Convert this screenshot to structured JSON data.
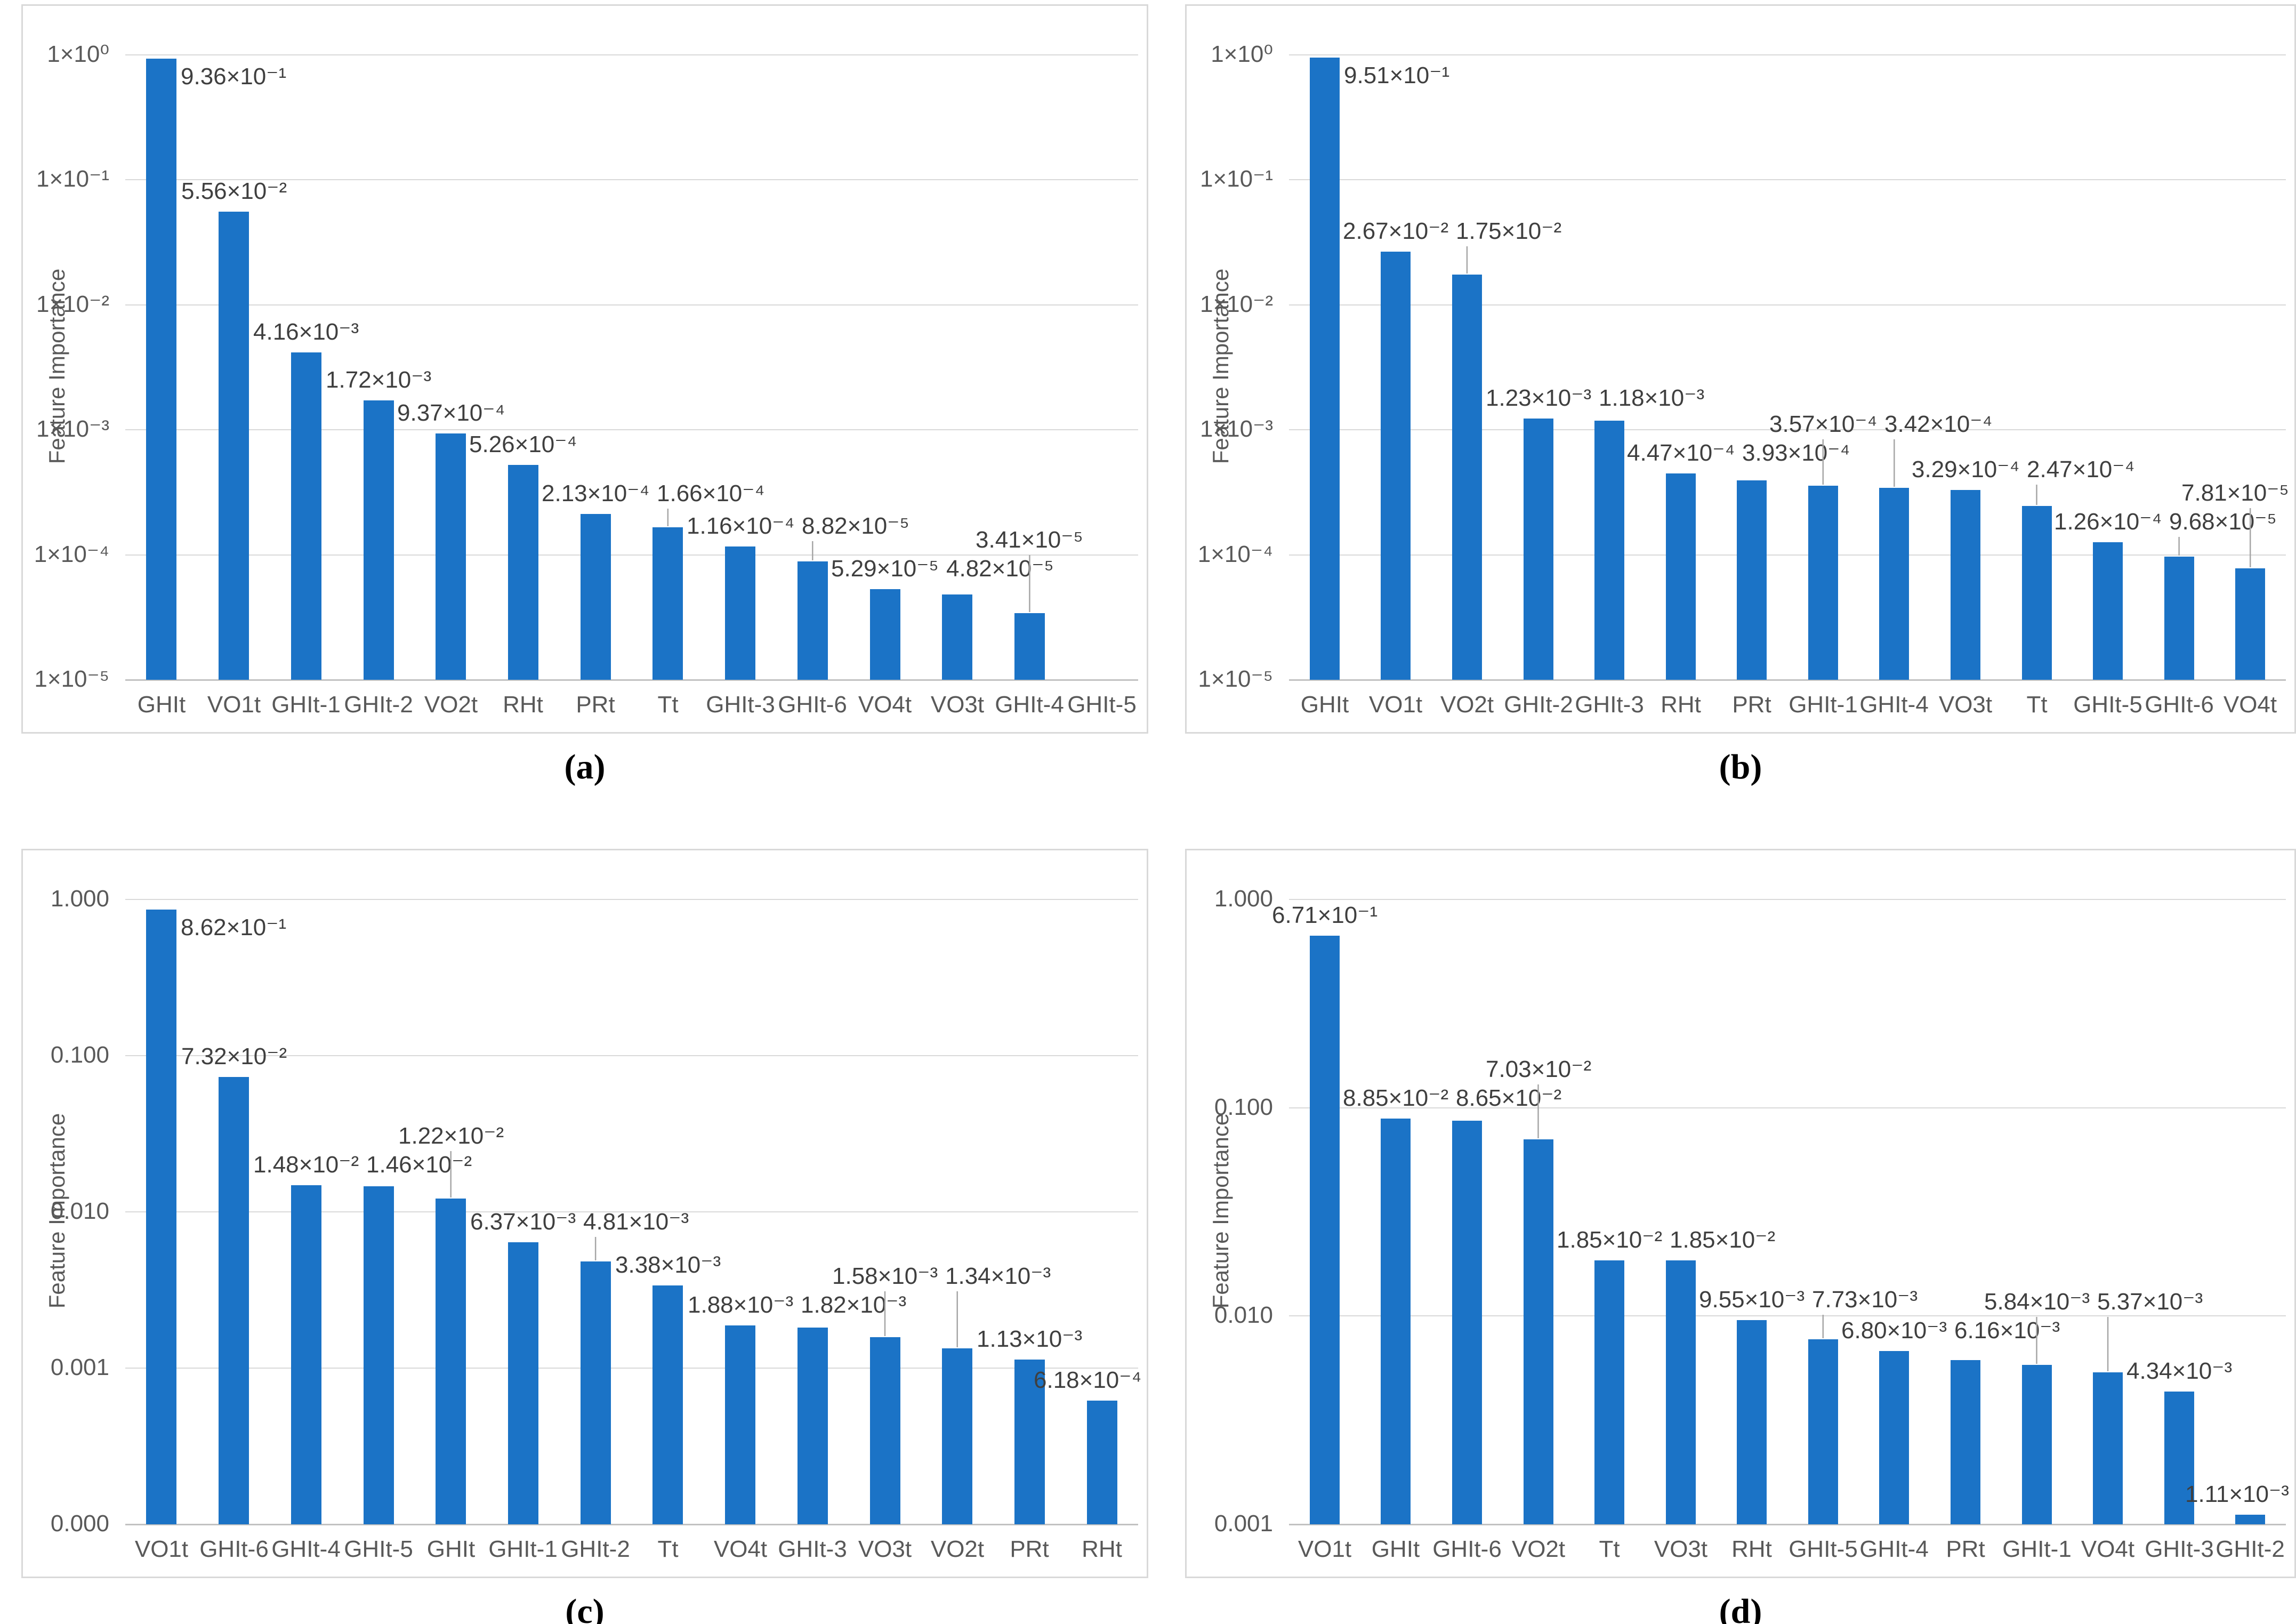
{
  "figure": {
    "bar_color": "#1b73c6",
    "grid_color": "#d9d9d9",
    "axis_line_color": "#c2c2c2",
    "border_color": "#d9d9d9",
    "tick_color": "#595959",
    "value_label_color": "#3f3f3f",
    "leader_color": "#a6a6a6",
    "caption_color": "#000000"
  },
  "chart_data": [
    {
      "id": "a",
      "caption": "(a)",
      "type": "bar",
      "ylabel": "Feature Importance",
      "xlabel": "",
      "yscale": "log",
      "ylim": [
        1e-05,
        1
      ],
      "grid": true,
      "legend": "none",
      "ytick_labels": [
        "1×10⁰",
        "1×10⁻¹",
        "1×10⁻²",
        "1×10⁻³",
        "1×10⁻⁴",
        "1×10⁻⁵"
      ],
      "categories": [
        "GHIt",
        "VO1t",
        "GHIt-1",
        "GHIt-2",
        "VO2t",
        "RHt",
        "PRt",
        "Tt",
        "GHIt-3",
        "GHIt-6",
        "VO4t",
        "VO3t",
        "GHIt-4",
        "GHIt-5"
      ],
      "values": [
        0.936,
        0.0556,
        0.00416,
        0.00172,
        0.000937,
        0.000526,
        0.000213,
        0.000166,
        0.000116,
        8.82e-05,
        5.29e-05,
        4.82e-05,
        3.41e-05,
        null
      ],
      "value_labels": [
        "9.36×10⁻¹",
        "5.56×10⁻²",
        "4.16×10⁻³",
        "1.72×10⁻³",
        "9.37×10⁻⁴",
        "5.26×10⁻⁴",
        "2.13×10⁻⁴",
        "1.66×10⁻⁴",
        "1.16×10⁻⁴",
        "8.82×10⁻⁵",
        "5.29×10⁻⁵",
        "4.82×10⁻⁵",
        "3.41×10⁻⁵",
        null
      ]
    },
    {
      "id": "b",
      "caption": "(b)",
      "type": "bar",
      "ylabel": "Feature Importance",
      "xlabel": "",
      "yscale": "log",
      "ylim": [
        1e-05,
        1
      ],
      "grid": true,
      "legend": "none",
      "ytick_labels": [
        "1×10⁰",
        "1×10⁻¹",
        "1×10⁻²",
        "1×10⁻³",
        "1×10⁻⁴",
        "1×10⁻⁵"
      ],
      "categories": [
        "GHIt",
        "VO1t",
        "VO2t",
        "GHIt-2",
        "GHIt-3",
        "RHt",
        "PRt",
        "GHIt-1",
        "GHIt-4",
        "VO3t",
        "Tt",
        "GHIt-5",
        "GHIt-6",
        "VO4t"
      ],
      "values": [
        0.951,
        0.0267,
        0.0175,
        0.00123,
        0.00118,
        0.000447,
        0.000393,
        0.000357,
        0.000342,
        0.000329,
        0.000247,
        0.000126,
        9.68e-05,
        7.81e-05
      ],
      "value_labels": [
        "9.51×10⁻¹",
        "2.67×10⁻²",
        "1.75×10⁻²",
        "1.23×10⁻³",
        "1.18×10⁻³",
        "4.47×10⁻⁴",
        "3.93×10⁻⁴",
        "3.57×10⁻⁴",
        "3.42×10⁻⁴",
        "3.29×10⁻⁴",
        "2.47×10⁻⁴",
        "1.26×10⁻⁴",
        "9.68×10⁻⁵",
        "7.81×10⁻⁵"
      ]
    },
    {
      "id": "c",
      "caption": "(c)",
      "type": "bar",
      "ylabel": "Feature Importance",
      "xlabel": "",
      "yscale": "log",
      "ylim": [
        0.0001,
        1
      ],
      "grid": true,
      "legend": "none",
      "ytick_labels": [
        "1.000",
        "0.100",
        "0.010",
        "0.001",
        "0.000"
      ],
      "categories": [
        "VO1t",
        "GHIt-6",
        "GHIt-4",
        "GHIt-5",
        "GHIt",
        "GHIt-1",
        "GHIt-2",
        "Tt",
        "VO4t",
        "GHIt-3",
        "VO3t",
        "VO2t",
        "PRt",
        "RHt"
      ],
      "values": [
        0.862,
        0.0732,
        0.0148,
        0.0146,
        0.0122,
        0.00637,
        0.00481,
        0.00338,
        0.00188,
        0.00182,
        0.00158,
        0.00134,
        0.00113,
        0.000618
      ],
      "value_labels": [
        "8.62×10⁻¹",
        "7.32×10⁻²",
        "1.48×10⁻²",
        "1.46×10⁻²",
        "1.22×10⁻²",
        "6.37×10⁻³",
        "4.81×10⁻³",
        "3.38×10⁻³",
        "1.88×10⁻³",
        "1.82×10⁻³",
        "1.58×10⁻³",
        "1.34×10⁻³",
        "1.13×10⁻³",
        "6.18×10⁻⁴"
      ]
    },
    {
      "id": "d",
      "caption": "(d)",
      "type": "bar",
      "ylabel": "Feature Importance",
      "xlabel": "",
      "yscale": "log",
      "ylim": [
        0.001,
        1
      ],
      "grid": true,
      "legend": "none",
      "ytick_labels": [
        "1.000",
        "0.100",
        "0.010",
        "0.001"
      ],
      "categories": [
        "VO1t",
        "GHIt",
        "GHIt-6",
        "VO2t",
        "Tt",
        "VO3t",
        "RHt",
        "GHIt-5",
        "GHIt-4",
        "PRt",
        "GHIt-1",
        "VO4t",
        "GHIt-3",
        "GHIt-2"
      ],
      "values": [
        0.671,
        0.0885,
        0.0865,
        0.0703,
        0.0185,
        0.0185,
        0.00955,
        0.00773,
        0.0068,
        0.00616,
        0.00584,
        0.00537,
        0.00434,
        0.00111
      ],
      "value_labels": [
        "6.71×10⁻¹",
        "8.85×10⁻²",
        "8.65×10⁻²",
        "7.03×10⁻²",
        "1.85×10⁻²",
        "1.85×10⁻²",
        "9.55×10⁻³",
        "7.73×10⁻³",
        "6.80×10⁻³",
        "6.16×10⁻³",
        "5.84×10⁻³",
        "5.37×10⁻³",
        "4.34×10⁻³",
        "1.11×10⁻³"
      ]
    }
  ]
}
